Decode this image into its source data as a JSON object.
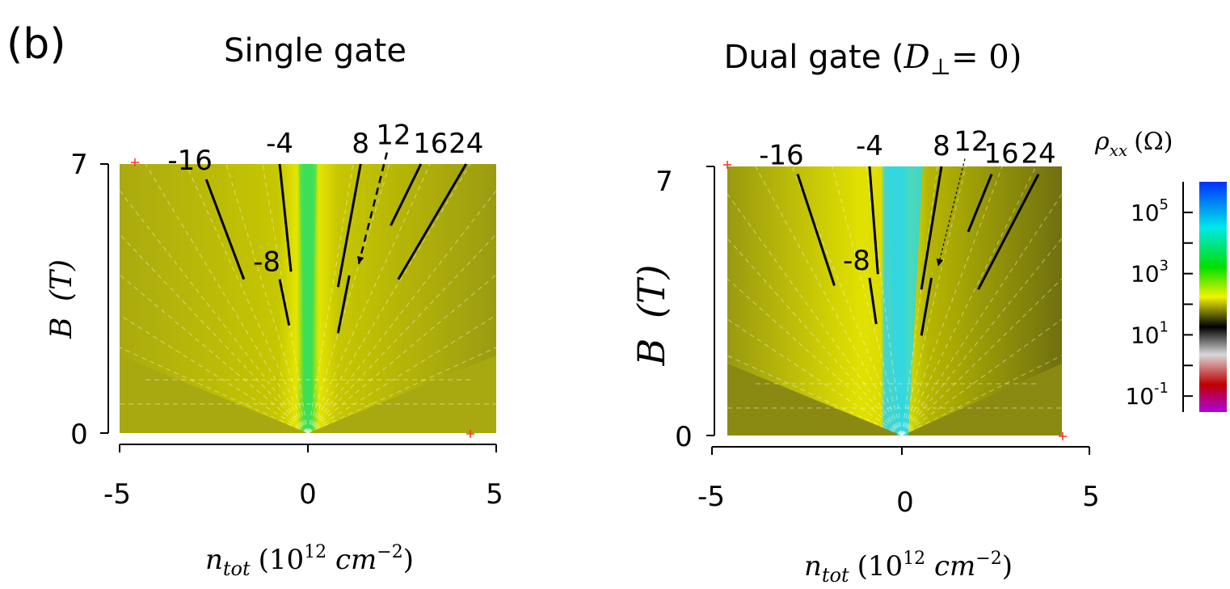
{
  "figure": {
    "panel_label": "(b)"
  },
  "chart_data": [
    {
      "type": "heatmap",
      "title": "Single gate",
      "xlabel": {
        "main": "n",
        "sub": "tot",
        "unit_base": "(10",
        "unit_exp": "12",
        "unit_mid": " cm",
        "unit_exp2": "−2",
        "unit_end": ")"
      },
      "ylabel": {
        "main": "B",
        "unit": "(T)"
      },
      "xlim": [
        -5,
        5
      ],
      "ylim": [
        0,
        7
      ],
      "x_ticks": [
        "-5",
        "0",
        "5"
      ],
      "y_ticks": [
        "0",
        "7"
      ],
      "grid": false,
      "filling_factors": [
        {
          "label": "-16",
          "x": [
            -2.7,
            -1.7
          ],
          "y": [
            6.6,
            4.0
          ]
        },
        {
          "label": "-4",
          "x": [
            -0.75,
            -0.45
          ],
          "y": [
            7.0,
            4.2
          ]
        },
        {
          "label": "-8",
          "x": [
            -0.75,
            -0.5
          ],
          "y": [
            4.0,
            2.8
          ]
        },
        {
          "label": "8",
          "x": [
            1.4,
            0.8
          ],
          "y": [
            7.0,
            3.8
          ]
        },
        {
          "label": "8",
          "x": [
            1.1,
            0.8
          ],
          "y": [
            4.1,
            2.6
          ]
        },
        {
          "label": "12",
          "x": [
            2.1,
            1.35
          ],
          "y": [
            7.3,
            4.4
          ],
          "dashed": true
        },
        {
          "label": "16",
          "x": [
            3.0,
            2.2
          ],
          "y": [
            7.0,
            5.4
          ]
        },
        {
          "label": "24",
          "x": [
            4.2,
            2.4
          ],
          "y": [
            7.0,
            4.0
          ]
        }
      ]
    },
    {
      "type": "heatmap",
      "title": "Dual gate (D⊥= 0)",
      "title_parts": {
        "prefix": "Dual gate (",
        "var": "D",
        "sub": "⊥",
        "suffix": "= 0)"
      },
      "xlabel": {
        "main": "n",
        "sub": "tot",
        "unit_base": "(10",
        "unit_exp": "12",
        "unit_mid": " cm",
        "unit_exp2": "−2",
        "unit_end": ")"
      },
      "ylabel": {
        "main": "B",
        "unit": "(T)"
      },
      "xlim": [
        -5,
        5
      ],
      "ylim": [
        0,
        7
      ],
      "x_ticks": [
        "-5",
        "0",
        "5"
      ],
      "y_ticks": [
        "0",
        "7"
      ],
      "grid": false,
      "filling_factors": [
        {
          "label": "-16",
          "x": [
            -2.9,
            -1.8
          ],
          "y": [
            6.8,
            3.9
          ]
        },
        {
          "label": "-4",
          "x": [
            -0.75,
            -0.5
          ],
          "y": [
            7.0,
            4.2
          ]
        },
        {
          "label": "-8",
          "x": [
            -0.75,
            -0.55
          ],
          "y": [
            4.1,
            2.9
          ]
        },
        {
          "label": "8",
          "x": [
            1.4,
            0.8
          ],
          "y": [
            7.0,
            3.8
          ]
        },
        {
          "label": "8",
          "x": [
            1.1,
            0.8
          ],
          "y": [
            4.1,
            2.6
          ]
        },
        {
          "label": "12",
          "x": [
            2.1,
            1.3
          ],
          "y": [
            7.2,
            4.4
          ],
          "dashed": true
        },
        {
          "label": "16",
          "x": [
            2.9,
            2.2
          ],
          "y": [
            6.8,
            5.3
          ]
        },
        {
          "label": "24",
          "x": [
            4.3,
            2.5
          ],
          "y": [
            6.8,
            3.8
          ]
        }
      ]
    }
  ],
  "colorbar": {
    "label": "ρ",
    "label_sub": "xx",
    "label_unit": "(Ω)",
    "scale": "log",
    "ticks": [
      {
        "base": "10",
        "exp": "5",
        "value": 100000
      },
      {
        "base": "10",
        "exp": "3",
        "value": 1000
      },
      {
        "base": "10",
        "exp": "1",
        "value": 10
      },
      {
        "base": "10",
        "exp": "-1",
        "value": 0.1
      }
    ],
    "range": [
      0.03,
      1000000
    ],
    "colors": [
      "#a000d0",
      "#c00000",
      "#c8c8c8",
      "#000000",
      "#e0e000",
      "#00e000",
      "#00e8e8",
      "#0040ff"
    ]
  }
}
